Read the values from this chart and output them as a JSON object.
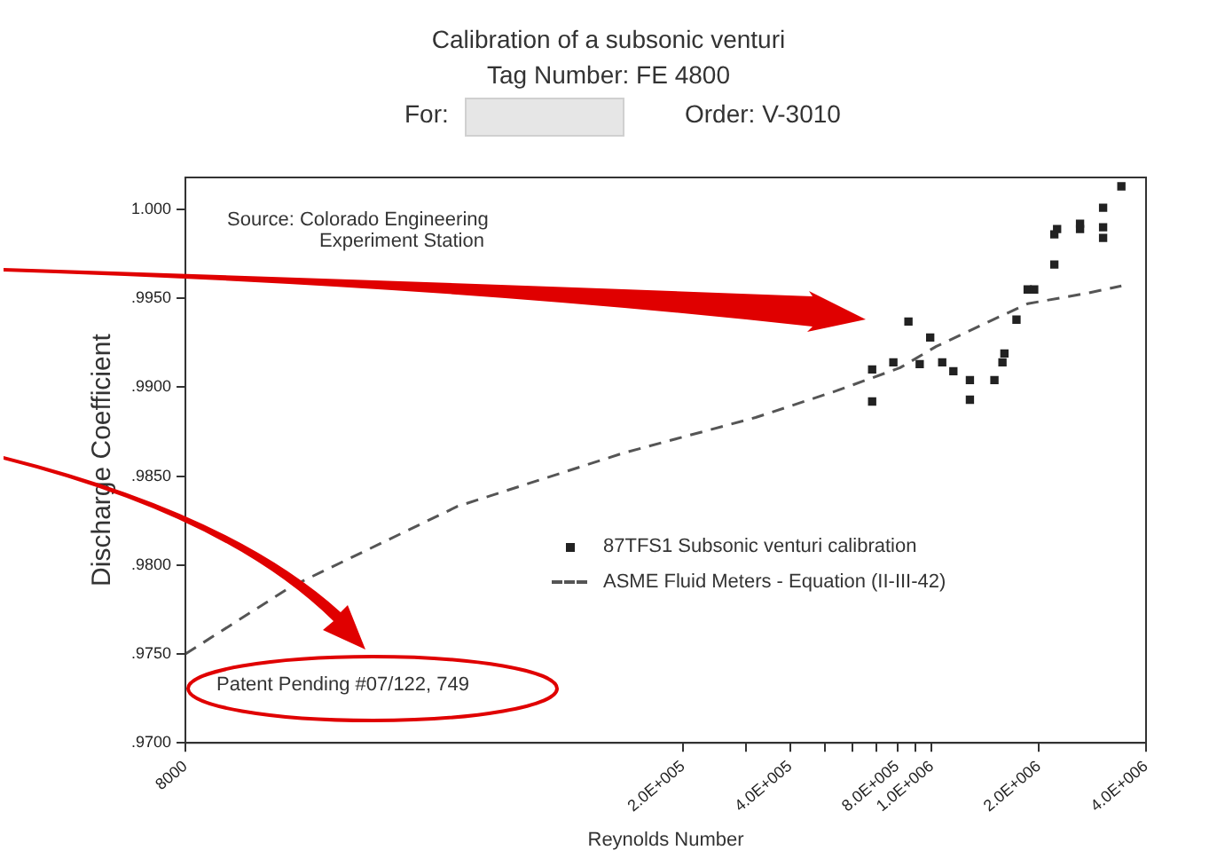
{
  "chart_data": {
    "type": "scatter",
    "title": "Calibration of a subsonic venturi",
    "subtitle": "Tag Number: FE 4800",
    "xlabel": "Reynolds Number",
    "ylabel": "Discharge Coefficient",
    "annotations": [
      "For:",
      "Order: V-3010",
      "Source: Colorado Engineering Experiment Station",
      "Patent Pending #07/122, 749"
    ],
    "log": "x",
    "xlim": [
      8000,
      4000000
    ],
    "xticks": [
      8000,
      {
        "value": 200000,
        "label": "2.0E+005"
      },
      {
        "value": 300000,
        "label": null
      },
      {
        "value": 400000,
        "label": "4.0E+005"
      },
      {
        "value": 500000,
        "label": null
      },
      {
        "value": 600000,
        "label": null
      },
      {
        "value": 700000,
        "label": null
      },
      {
        "value": 800000,
        "label": "8.0E+005"
      },
      {
        "value": 900000,
        "label": null
      },
      {
        "value": 1000000,
        "label": "1.0E+006"
      },
      {
        "value": 2000000,
        "label": "2.0E+006"
      },
      {
        "value": 4000000,
        "label": "4.0E+006"
      }
    ],
    "ylim": [
      0.97,
      1.0018
    ],
    "yticks": [
      {
        "value": 0.97,
        "label": ".9700"
      },
      {
        "value": 0.975,
        "label": ".9750"
      },
      {
        "value": 0.98,
        "label": ".9800"
      },
      {
        "value": 0.985,
        "label": ".9850"
      },
      {
        "value": 0.99,
        "label": ".9900"
      },
      {
        "value": 0.995,
        "label": ".9950"
      },
      {
        "value": 1.0,
        "label": "1.000"
      }
    ],
    "grid": false,
    "legend": "right",
    "series": [
      {
        "name": "87TFS1 Subsonic venturi calibration",
        "marker": "square",
        "color": "#222222",
        "x": [
          680000,
          680000,
          780000,
          860000,
          925000,
          990000,
          1070000,
          1150000,
          1280000,
          1280000,
          1500000,
          1580000,
          1600000,
          1730000,
          1860000,
          1940000,
          2210000,
          2210000,
          2250000,
          2610000,
          2610000,
          3030000,
          3030000,
          3030000,
          3410000
        ],
        "values": [
          0.991,
          0.9892,
          0.9914,
          0.9937,
          0.9913,
          0.9928,
          0.9914,
          0.9909,
          0.9904,
          0.9893,
          0.9904,
          0.9914,
          0.9919,
          0.9938,
          0.9955,
          0.9955,
          0.9969,
          0.9986,
          0.9989,
          0.9992,
          0.9989,
          0.999,
          0.9984,
          1.0001,
          1.0013
        ]
      },
      {
        "name": "ASME Fluid Meters - Equation (II-III-42)",
        "type": "line",
        "marker": "none",
        "line_style": "dashed",
        "color": "#555555",
        "x": [
          8000,
          15900,
          46500,
          136000,
          320000,
          540000,
          815000,
          1030000,
          1380000,
          1860000,
          2750000,
          3410000
        ],
        "values": [
          0.975,
          0.9788,
          0.9833,
          0.9863,
          0.9883,
          0.9898,
          0.9911,
          0.9923,
          0.9935,
          0.9947,
          0.9953,
          0.9957
        ]
      }
    ]
  }
}
